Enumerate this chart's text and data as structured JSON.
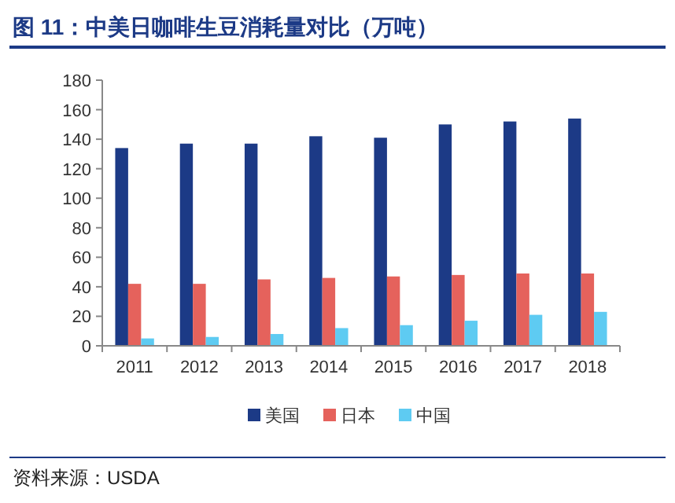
{
  "chart_data": {
    "type": "bar",
    "title": "图 11：中美日咖啡生豆消耗量对比（万吨）",
    "categories": [
      "2011",
      "2012",
      "2013",
      "2014",
      "2015",
      "2016",
      "2017",
      "2018"
    ],
    "series": [
      {
        "name": "美国",
        "color": "#1c3a86",
        "values": [
          134,
          137,
          137,
          142,
          141,
          150,
          152,
          154
        ]
      },
      {
        "name": "日本",
        "color": "#e5625c",
        "values": [
          42,
          42,
          45,
          46,
          47,
          48,
          49,
          49
        ]
      },
      {
        "name": "中国",
        "color": "#5ecbf2",
        "values": [
          5,
          6,
          8,
          12,
          14,
          17,
          21,
          23
        ]
      }
    ],
    "ylim": [
      0,
      180
    ],
    "yticks": [
      0,
      20,
      40,
      60,
      80,
      100,
      120,
      140,
      160,
      180
    ],
    "grid": false,
    "legend": "bottom",
    "annotations": [
      "资料来源：USDA"
    ]
  }
}
